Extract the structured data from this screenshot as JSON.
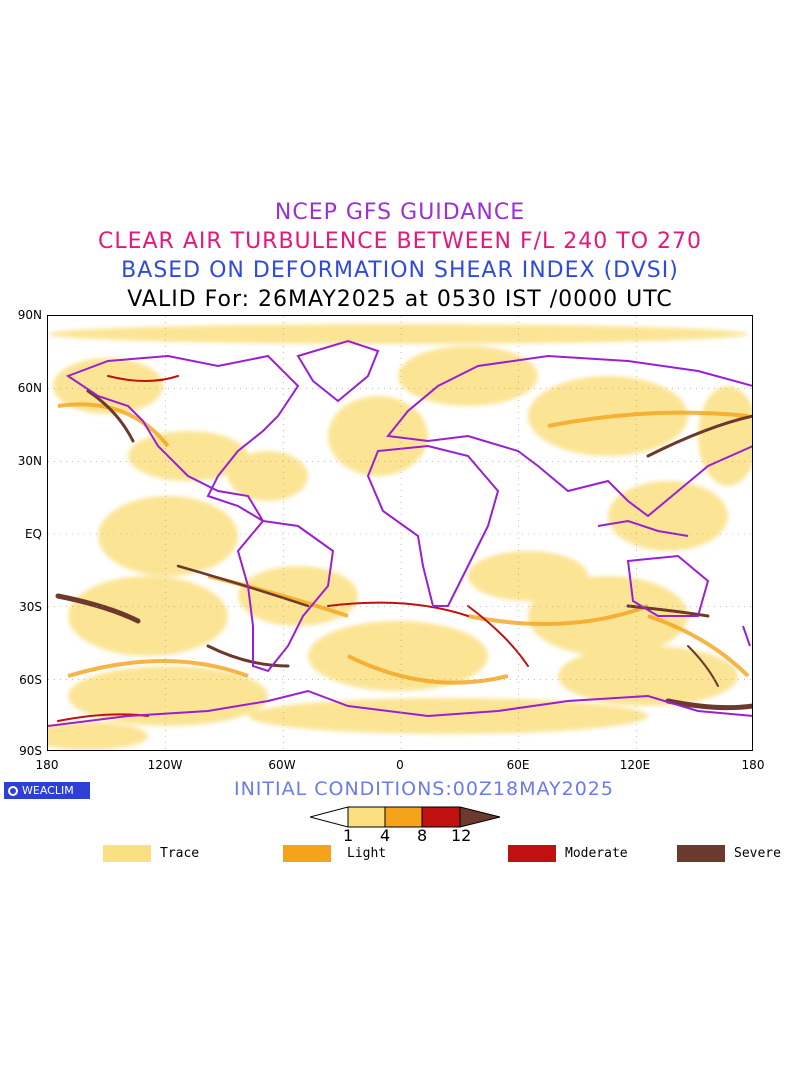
{
  "titles": {
    "line1": "NCEP GFS GUIDANCE",
    "line2": "CLEAR AIR TURBULENCE BETWEEN F/L 240 TO 270",
    "line3": "BASED ON DEFORMATION SHEAR INDEX (DVSI)",
    "line4": "VALID For: 26MAY2025 at 0530 IST /0000 UTC"
  },
  "map": {
    "lat_labels": [
      "90N",
      "60N",
      "30N",
      "EQ",
      "30S",
      "60S",
      "90S"
    ],
    "lon_labels": [
      "180",
      "120W",
      "60W",
      "0",
      "60E",
      "120E",
      "180"
    ],
    "coastline_color": "#9b1fd0",
    "turbulence_colors": {
      "trace": "#fbe082",
      "light": "#f5a31a",
      "moderate": "#c0100f",
      "severe": "#6b3a2c"
    }
  },
  "footer": {
    "logo_text": "WEACLIM",
    "initial_conditions": "INITIAL CONDITIONS:00Z18MAY2025"
  },
  "colorbar": {
    "ticks": [
      "1",
      "4",
      "8",
      "12"
    ],
    "colors": [
      "#ffffff",
      "#fbe082",
      "#f5a31a",
      "#c0100f",
      "#6b3a2c"
    ]
  },
  "legend": [
    {
      "label": "Trace",
      "color": "#fbe082"
    },
    {
      "label": "Light",
      "color": "#f5a31a"
    },
    {
      "label": "Moderate",
      "color": "#c0100f"
    },
    {
      "label": "Severe",
      "color": "#6b3a2c"
    }
  ]
}
